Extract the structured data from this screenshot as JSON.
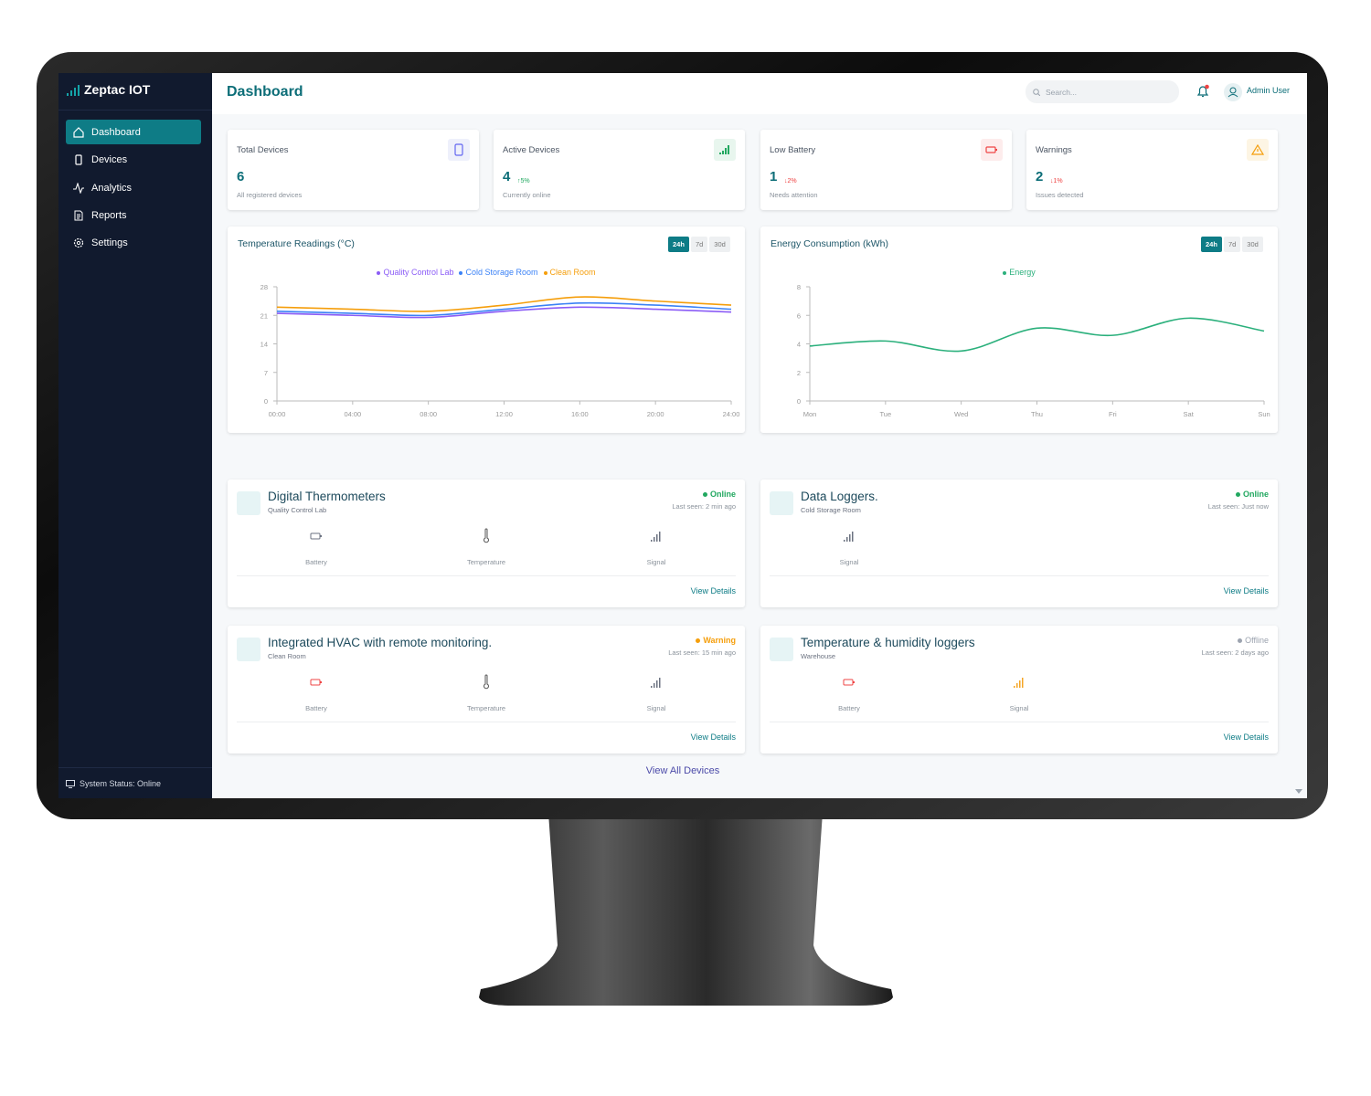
{
  "brand": "Zeptac IOT",
  "nav": [
    "Dashboard",
    "Devices",
    "Analytics",
    "Reports",
    "Settings"
  ],
  "system_status": "System Status: Online",
  "header": {
    "title": "Dashboard",
    "search_placeholder": "Search...",
    "user": "Admin User"
  },
  "stats": [
    {
      "label": "Total Devices",
      "value": "6",
      "note": "All registered devices"
    },
    {
      "label": "Active Devices",
      "value": "4",
      "change": "↑5%",
      "note": "Currently online"
    },
    {
      "label": "Low Battery",
      "value": "1",
      "change": "↓2%",
      "note": "Needs attention"
    },
    {
      "label": "Warnings",
      "value": "2",
      "change": "↓1%",
      "note": "Issues detected"
    }
  ],
  "chart_data": [
    {
      "type": "line",
      "title": "Temperature Readings (°C)",
      "ranges": [
        "24h",
        "7d",
        "30d"
      ],
      "categories": [
        "00:00",
        "04:00",
        "08:00",
        "12:00",
        "16:00",
        "20:00",
        "24:00"
      ],
      "series": [
        {
          "name": "Quality Control Lab",
          "color": "#8b5cf6",
          "values": [
            21.5,
            21.0,
            20.5,
            22.0,
            23.0,
            22.5,
            21.8
          ]
        },
        {
          "name": "Cold Storage Room",
          "color": "#3b82f6",
          "values": [
            22.0,
            21.5,
            21.0,
            22.5,
            24.0,
            23.5,
            22.5
          ]
        },
        {
          "name": "Clean Room",
          "color": "#f59e0b",
          "values": [
            23.0,
            22.5,
            22.0,
            23.5,
            25.5,
            24.5,
            23.5
          ]
        }
      ],
      "ylim": [
        0,
        28
      ],
      "yticks": [
        0,
        7,
        14,
        21,
        28
      ]
    },
    {
      "type": "line",
      "title": "Energy Consumption (kWh)",
      "ranges": [
        "24h",
        "7d",
        "30d"
      ],
      "categories": [
        "Mon",
        "Tue",
        "Wed",
        "Thu",
        "Fri",
        "Sat",
        "Sun"
      ],
      "series": [
        {
          "name": "Energy",
          "color": "#2bb07c",
          "values": [
            3.85,
            4.2,
            3.5,
            5.1,
            4.6,
            5.8,
            4.9
          ]
        }
      ],
      "ylim": [
        0,
        8
      ],
      "yticks": [
        0,
        2,
        4,
        6,
        8
      ]
    }
  ],
  "devices": [
    {
      "name": "Digital Thermometers",
      "location": "Quality Control Lab",
      "status": "Online",
      "last_seen": "Last seen: 2 min ago",
      "metrics": [
        "Battery",
        "Temperature",
        "Signal"
      ],
      "link": "View Details"
    },
    {
      "name": "Data Loggers.",
      "location": "Cold Storage Room",
      "status": "Online",
      "last_seen": "Last seen: Just now",
      "metrics": [
        "Signal"
      ],
      "link": "View Details"
    },
    {
      "name": "Integrated HVAC with remote monitoring.",
      "location": "Clean Room",
      "status": "Warning",
      "last_seen": "Last seen: 15 min ago",
      "metrics": [
        "Battery",
        "Temperature",
        "Signal"
      ],
      "link": "View Details"
    },
    {
      "name": "Temperature & humidity loggers",
      "location": "Warehouse",
      "status": "Offline",
      "last_seen": "Last seen: 2 days ago",
      "metrics": [
        "Battery",
        "Signal"
      ],
      "link": "View Details"
    }
  ],
  "view_all": "View All Devices"
}
